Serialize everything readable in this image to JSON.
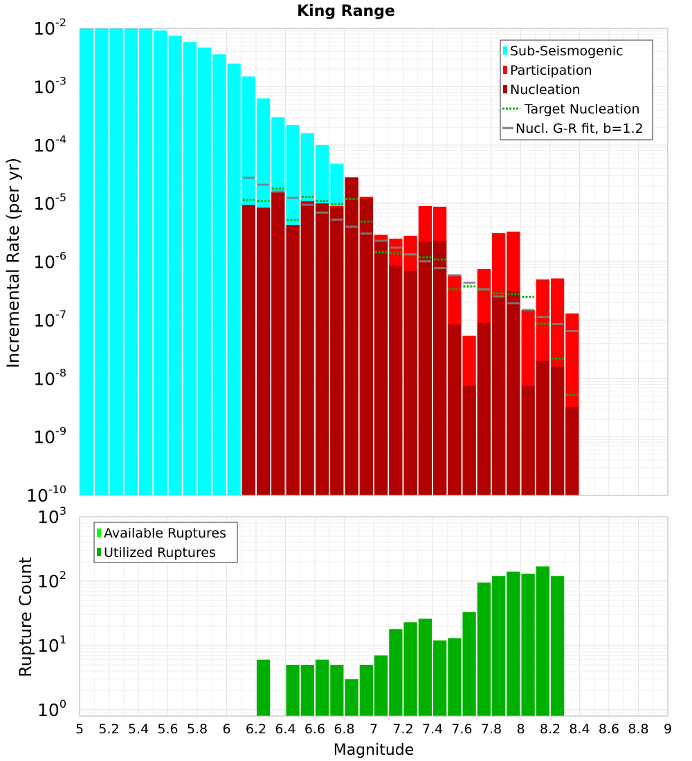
{
  "chart_data": [
    {
      "type": "bar",
      "title": "King Range",
      "xlabel": "",
      "ylabel": "Incremental Rate (per yr)",
      "xlim": [
        5,
        9
      ],
      "ylim": [
        1e-10,
        0.01
      ],
      "yscale": "log",
      "bin_width": 0.1,
      "ytick_exponents": [
        "-10",
        "-9",
        "-8",
        "-7",
        "-6",
        "-5",
        "-4",
        "-3",
        "-2"
      ],
      "series": [
        {
          "name": "Sub-Seismogenic",
          "color": "#00ffff",
          "x": [
            5.05,
            5.15,
            5.25,
            5.35,
            5.45,
            5.55,
            5.65,
            5.75,
            5.85,
            5.95,
            6.05,
            6.15,
            6.25,
            6.35,
            6.45,
            6.55,
            6.65,
            6.75
          ],
          "values": [
            0.01,
            0.01,
            0.01,
            0.01,
            0.01,
            0.0092,
            0.0075,
            0.0058,
            0.0047,
            0.0036,
            0.0025,
            0.0015,
            0.00063,
            0.0003,
            0.00022,
            0.00016,
            0.0001,
            4.8e-05
          ]
        },
        {
          "name": "Participation",
          "color": "#ff0000",
          "x": [
            6.15,
            6.25,
            6.35,
            6.45,
            6.55,
            6.65,
            6.75,
            6.85,
            6.95,
            7.05,
            7.15,
            7.25,
            7.35,
            7.45,
            7.55,
            7.65,
            7.75,
            7.85,
            7.95,
            8.05,
            8.15,
            8.25,
            8.35
          ],
          "values": [
            9.5e-06,
            8.5e-06,
            1.6e-05,
            4.3e-06,
            1.1e-05,
            1e-05,
            9e-06,
            2.8e-05,
            1.3e-05,
            2.9e-06,
            2.5e-06,
            2.8e-06,
            9e-06,
            8.8e-06,
            6e-07,
            5.4e-08,
            7.5e-07,
            3.1e-06,
            3.3e-06,
            1.5e-07,
            5e-07,
            5.2e-07,
            1.3e-07
          ]
        },
        {
          "name": "Nucleation",
          "color": "#b00000",
          "x": [
            6.15,
            6.25,
            6.35,
            6.45,
            6.55,
            6.65,
            6.75,
            6.85,
            6.95,
            7.05,
            7.15,
            7.25,
            7.35,
            7.45,
            7.55,
            7.65,
            7.75,
            7.85,
            7.95,
            8.05,
            8.15,
            8.25,
            8.35
          ],
          "values": [
            9.5e-06,
            8.5e-06,
            1.6e-05,
            4.3e-06,
            1.05e-05,
            1e-05,
            8.5e-06,
            2.8e-05,
            1.2e-05,
            2.4e-06,
            8.5e-07,
            7e-07,
            2.2e-06,
            2.3e-06,
            8.5e-08,
            7.5e-09,
            9e-08,
            2.7e-07,
            3.1e-07,
            7.5e-09,
            2e-08,
            1.6e-08,
            3.3e-09
          ]
        },
        {
          "name": "Target Nucleation",
          "color": "#00b000",
          "style": "dotted",
          "x": [
            6.15,
            6.25,
            6.35,
            6.45,
            6.55,
            6.65,
            6.75,
            6.85,
            6.95,
            7.05,
            7.15,
            7.25,
            7.35,
            7.45,
            7.55,
            7.65,
            7.75,
            7.85,
            7.95,
            8.05,
            8.15,
            8.25,
            8.35
          ],
          "values": [
            1.15e-05,
            1.1e-05,
            1.8e-05,
            5.2e-06,
            1.3e-05,
            1.1e-05,
            9.8e-06,
            1.2e-05,
            4.9e-06,
            1.45e-06,
            1.4e-06,
            1.3e-06,
            1.2e-06,
            1.1e-06,
            3.4e-07,
            3.8e-07,
            3.3e-07,
            2.9e-07,
            2.8e-07,
            2.5e-07,
            8.7e-08,
            2.2e-08,
            5.3e-09
          ]
        },
        {
          "name": "Nucl. G-R fit, b=1.2",
          "color": "#808080",
          "x": [
            6.15,
            6.25,
            6.35,
            6.45,
            6.55,
            6.65,
            6.75,
            6.85,
            6.95,
            7.05,
            7.15,
            7.25,
            7.35,
            7.45,
            7.55,
            7.65,
            7.75,
            7.85,
            7.95,
            8.05,
            8.15,
            8.25,
            8.35
          ],
          "values": [
            2.75e-05,
            2.1e-05,
            1.6e-05,
            1.25e-05,
            9.5e-06,
            7e-06,
            5.3e-06,
            4e-06,
            3.05e-06,
            2.3e-06,
            1.75e-06,
            1.35e-06,
            1.02e-06,
            7.8e-07,
            5.9e-07,
            4.4e-07,
            3.4e-07,
            2.55e-07,
            1.95e-07,
            1.5e-07,
            1.13e-07,
            8.6e-08,
            6.5e-08
          ]
        }
      ],
      "legend": {
        "position": "top-right",
        "entries": [
          "Sub-Seismogenic",
          "Participation",
          "Nucleation",
          "Target Nucleation",
          "Nucl. G-R fit, b=1.2"
        ]
      }
    },
    {
      "type": "bar",
      "title": "",
      "xlabel": "Magnitude",
      "ylabel": "Rupture Count",
      "xlim": [
        5,
        9
      ],
      "ylim": [
        0.8,
        1000
      ],
      "yscale": "log",
      "ytick_exponents": [
        "0",
        "1",
        "2",
        "3"
      ],
      "xticks": [
        "5",
        "5.2",
        "5.4",
        "5.6",
        "5.8",
        "6",
        "6.2",
        "6.4",
        "6.6",
        "6.8",
        "7",
        "7.2",
        "7.4",
        "7.6",
        "7.8",
        "8",
        "8.2",
        "8.4",
        "8.6",
        "8.8",
        "9"
      ],
      "series": [
        {
          "name": "Available Ruptures",
          "color": "#00ff00",
          "x": [
            6.25,
            6.45,
            6.55,
            6.65,
            6.75,
            6.85,
            6.95,
            7.05,
            7.15,
            7.25,
            7.35,
            7.45,
            7.55,
            7.65,
            7.75,
            7.85,
            7.95,
            8.05,
            8.15,
            8.25
          ],
          "values": [
            6,
            5,
            5,
            6,
            5,
            3,
            5,
            7,
            18,
            23,
            26,
            12,
            13,
            33,
            95,
            120,
            140,
            130,
            170,
            120
          ]
        },
        {
          "name": "Utilized Ruptures",
          "color": "#00b000",
          "x": [
            6.25,
            6.45,
            6.55,
            6.65,
            6.75,
            6.85,
            6.95,
            7.05,
            7.15,
            7.25,
            7.35,
            7.45,
            7.55,
            7.65,
            7.75,
            7.85,
            7.95,
            8.05,
            8.15,
            8.25
          ],
          "values": [
            6,
            5,
            5,
            6,
            5,
            3,
            5,
            7,
            18,
            23,
            26,
            12,
            13,
            33,
            95,
            120,
            140,
            130,
            170,
            120
          ]
        }
      ],
      "legend": {
        "position": "top-left",
        "entries": [
          "Available Ruptures",
          "Utilized Ruptures"
        ]
      }
    }
  ]
}
